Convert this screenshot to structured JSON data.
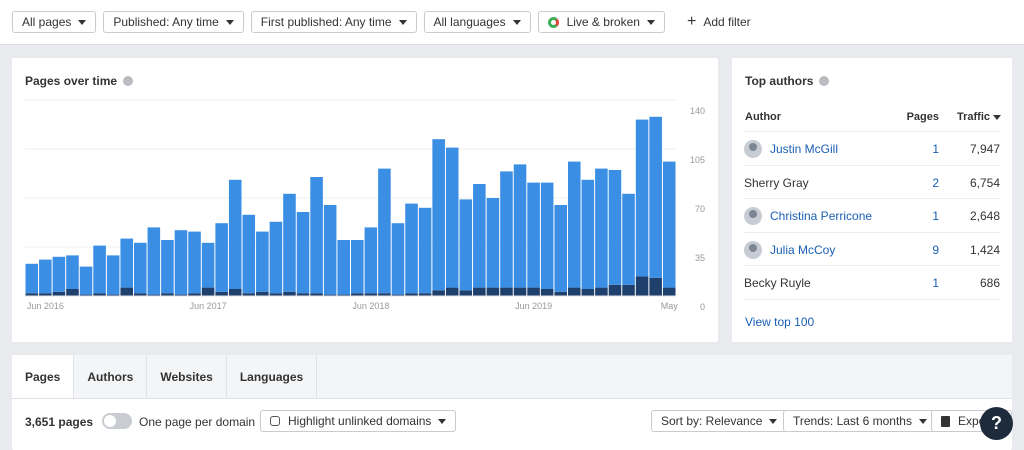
{
  "filters": [
    "All pages",
    "Published: Any time",
    "First published: Any time",
    "All languages",
    "Live & broken"
  ],
  "add_filter": "Add filter",
  "chart_data": {
    "type": "bar",
    "title": "Pages over time",
    "stacked": true,
    "categories": [
      null,
      "Jun 2016",
      null,
      null,
      null,
      null,
      null,
      null,
      null,
      null,
      null,
      null,
      null,
      "Jun 2017",
      null,
      null,
      null,
      null,
      null,
      null,
      null,
      null,
      null,
      null,
      null,
      "Jun 2018",
      null,
      null,
      null,
      null,
      null,
      null,
      null,
      null,
      null,
      null,
      null,
      "Jun 2019",
      null,
      null,
      null,
      null,
      null,
      null,
      null,
      null,
      null,
      "May"
    ],
    "series": [
      {
        "color": "#1f3f6d",
        "values": [
          2,
          2,
          3,
          5,
          1,
          2,
          1,
          6,
          2,
          1,
          2,
          1,
          2,
          6,
          3,
          5,
          2,
          3,
          2,
          3,
          2,
          2,
          1,
          1,
          2,
          2,
          2,
          1,
          2,
          2,
          4,
          6,
          4,
          6,
          6,
          6,
          6,
          6,
          5,
          3,
          6,
          5,
          6,
          8,
          8,
          14,
          13,
          6
        ]
      },
      {
        "color": "#3a8ee4",
        "values": [
          21,
          24,
          25,
          24,
          20,
          34,
          28,
          35,
          36,
          48,
          38,
          46,
          44,
          32,
          49,
          78,
          56,
          43,
          51,
          70,
          58,
          83,
          64,
          39,
          38,
          47,
          89,
          51,
          64,
          61,
          108,
          100,
          65,
          74,
          64,
          83,
          88,
          75,
          76,
          62,
          90,
          78,
          85,
          82,
          65,
          112,
          115,
          90
        ]
      }
    ],
    "ylim": [
      0,
      140
    ],
    "yticks": [
      0,
      35,
      70,
      105,
      140
    ],
    "grid": true
  },
  "top_authors": {
    "title": "Top authors",
    "columns": [
      "Author",
      "Pages",
      "Traffic"
    ],
    "rows": [
      {
        "name": "Justin McGill",
        "pages": "1",
        "traffic": "7,947",
        "linked": true
      },
      {
        "name": "Sherry Gray",
        "pages": "2",
        "traffic": "6,754",
        "linked": false
      },
      {
        "name": "Christina Perricone",
        "pages": "1",
        "traffic": "2,648",
        "linked": true
      },
      {
        "name": "Julia McCoy",
        "pages": "9",
        "traffic": "1,424",
        "linked": true
      },
      {
        "name": "Becky Ruyle",
        "pages": "1",
        "traffic": "686",
        "linked": false
      }
    ],
    "link": "View top 100"
  },
  "tabs": [
    "Pages",
    "Authors",
    "Websites",
    "Languages"
  ],
  "toolbar": {
    "count": "3,651 pages",
    "toggle": "One page per domain",
    "highlight": "Highlight unlinked domains",
    "sort": "Sort by: Relevance",
    "trends": "Trends: Last 6 months",
    "export": "Export"
  },
  "help": "?"
}
